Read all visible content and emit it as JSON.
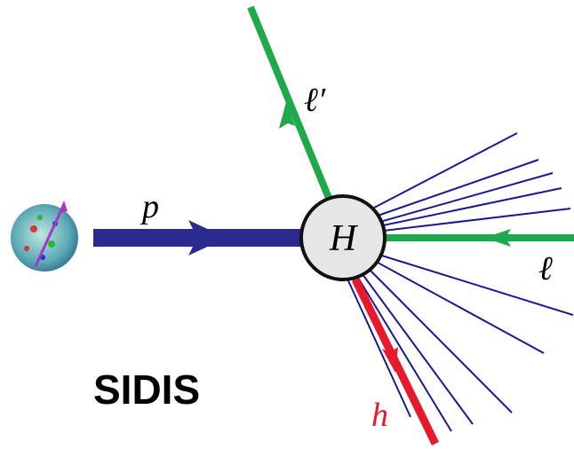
{
  "labels": {
    "proton": "p",
    "hadronic": "H",
    "outgoing_lepton": "ℓ′",
    "incoming_lepton": "ℓ",
    "hadron": "h"
  },
  "title": "SIDIS"
}
